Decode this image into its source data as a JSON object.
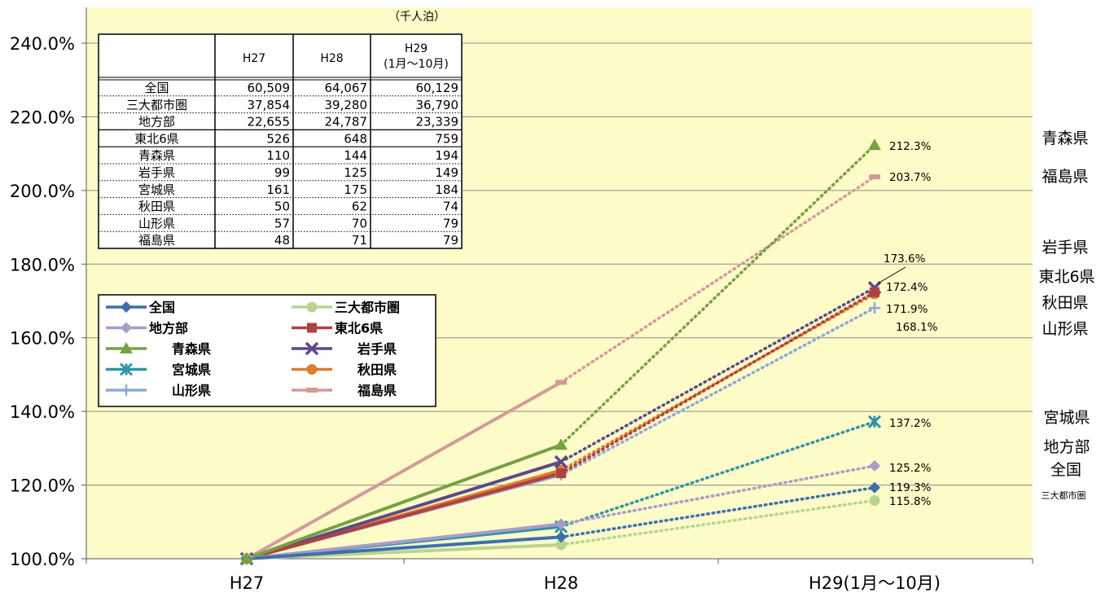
{
  "chart_data": {
    "type": "line",
    "categories": [
      "H27",
      "H28",
      "H29(1月〜10月)"
    ],
    "ylim": [
      100,
      240
    ],
    "yticks": [
      "100.0%",
      "120.0%",
      "140.0%",
      "160.0%",
      "180.0%",
      "200.0%",
      "220.0%",
      "240.0%"
    ],
    "grid": true,
    "legend_position": "upper-left",
    "series": [
      {
        "name": "全国",
        "values": [
          100.0,
          105.9,
          119.3
        ],
        "color": "#3d6fb0",
        "marker": "diamond"
      },
      {
        "name": "三大都市圏",
        "values": [
          100.0,
          103.8,
          115.8
        ],
        "color": "#b7d490",
        "marker": "circle"
      },
      {
        "name": "地方部",
        "values": [
          100.0,
          109.4,
          125.2
        ],
        "color": "#a99cc9",
        "marker": "diamond"
      },
      {
        "name": "東北6県",
        "values": [
          100.0,
          123.2,
          172.4
        ],
        "color": "#b0413e",
        "marker": "square"
      },
      {
        "name": "青森県",
        "values": [
          100.0,
          130.9,
          212.3
        ],
        "color": "#77a043",
        "marker": "triangle"
      },
      {
        "name": "岩手県",
        "values": [
          100.0,
          126.3,
          173.6
        ],
        "color": "#5c4a8a",
        "marker": "x"
      },
      {
        "name": "宮城県",
        "values": [
          100.0,
          108.7,
          137.2
        ],
        "color": "#2e95a8",
        "marker": "star"
      },
      {
        "name": "秋田県",
        "values": [
          100.0,
          124.0,
          171.9
        ],
        "color": "#e07c2e",
        "marker": "circle"
      },
      {
        "name": "山形県",
        "values": [
          100.0,
          122.8,
          168.1
        ],
        "color": "#8fa8d8",
        "marker": "plus"
      },
      {
        "name": "福島県",
        "values": [
          100.0,
          147.9,
          203.7
        ],
        "color": "#d49a96",
        "marker": "dash"
      }
    ],
    "value_labels": [
      "212.3%",
      "203.7%",
      "173.6%",
      "172.4%",
      "171.9%",
      "168.1%",
      "137.2%",
      "125.2%",
      "119.3%",
      "115.8%"
    ],
    "right_labels": [
      "青森県",
      "福島県",
      "岩手県",
      "東北6県",
      "秋田県",
      "山形県",
      "宮城県",
      "地方部",
      "全国",
      "三大都市圏"
    ]
  },
  "table": {
    "unit": "（千人泊）",
    "headers": [
      "",
      "H27",
      "H28",
      "H29\n(1月〜10月)"
    ],
    "rows": [
      [
        "全国",
        "60,509",
        "64,067",
        "60,129"
      ],
      [
        "三大都市圏",
        "37,854",
        "39,280",
        "36,790"
      ],
      [
        "地方部",
        "22,655",
        "24,787",
        "23,339"
      ],
      [
        "東北6県",
        "526",
        "648",
        "759"
      ],
      [
        "青森県",
        "110",
        "144",
        "194"
      ],
      [
        "岩手県",
        "99",
        "125",
        "149"
      ],
      [
        "宮城県",
        "161",
        "175",
        "184"
      ],
      [
        "秋田県",
        "50",
        "62",
        "74"
      ],
      [
        "山形県",
        "57",
        "70",
        "79"
      ],
      [
        "福島県",
        "48",
        "71",
        "79"
      ]
    ]
  }
}
